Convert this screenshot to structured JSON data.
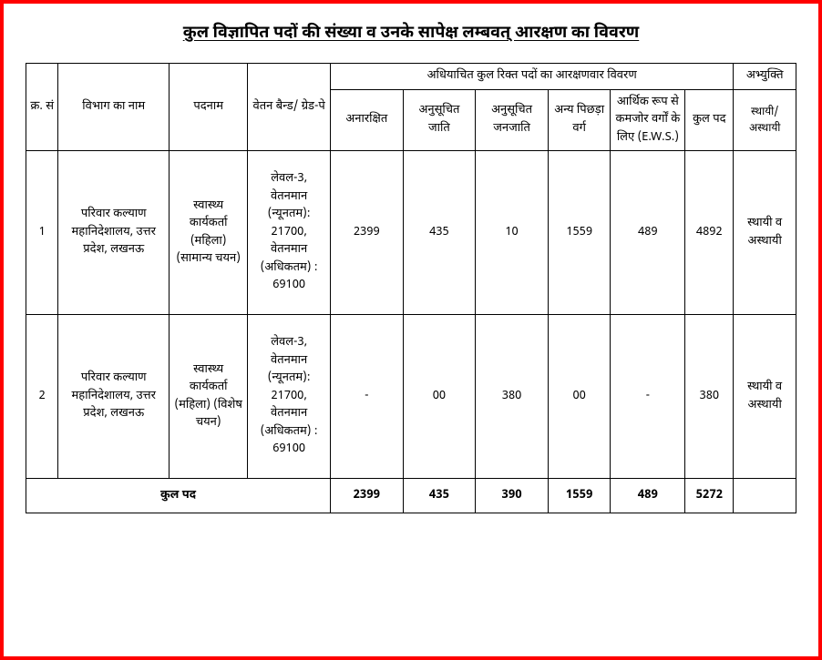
{
  "title": "कुल विज्ञापित पदों की संख्या व उनके सापेक्ष लम्बवत् आरक्षण का विवरण",
  "headers": {
    "sr": "क्र. सं",
    "dept": "विभाग का नाम",
    "post": "पदनाम",
    "payband": "वेतन बैन्ड/ ग्रेड-पे",
    "reservation_group": "अधियाचित कुल रिक्त पदों का आरक्षणवार विवरण",
    "unreserved": "अनारक्षित",
    "sc": "अनुसूचित जाति",
    "st": "अनुसूचित जनजाति",
    "obc": "अन्य पिछड़ा वर्ग",
    "ews": "आर्थिक रूप से कमजोर वर्गों के लिए (E.W.S.)",
    "total_post": "कुल पद",
    "remark": "अभ्युक्ति",
    "remark_sub": "स्थायी/ अस्थायी"
  },
  "rows": [
    {
      "sr": "1",
      "dept": "परिवार कल्याण महानिदेशालय, उत्तर प्रदेश, लखनऊ",
      "post": "स्वास्थ्य कार्यकर्ता (महिला) (सामान्य चयन)",
      "payband": "लेवल-3, वेतनमान (न्यूनतम): 21700, वेतनमान (अधिकतम) : 69100",
      "unreserved": "2399",
      "sc": "435",
      "st": "10",
      "obc": "1559",
      "ews": "489",
      "total": "4892",
      "remark": "स्थायी व अस्थायी"
    },
    {
      "sr": "2",
      "dept": "परिवार कल्याण महानिदेशालय, उत्तर प्रदेश, लखनऊ",
      "post": "स्वास्थ्य कार्यकर्ता (महिला) (विशेष चयन)",
      "payband": "लेवल-3, वेतनमान (न्यूनतम): 21700, वेतनमान (अधिकतम) : 69100",
      "unreserved": "-",
      "sc": "00",
      "st": "380",
      "obc": "00",
      "ews": "-",
      "total": "380",
      "remark": "स्थायी व अस्थायी"
    }
  ],
  "totals": {
    "label": "कुल पद",
    "unreserved": "2399",
    "sc": "435",
    "st": "390",
    "obc": "1559",
    "ews": "489",
    "total": "5272",
    "remark": ""
  }
}
